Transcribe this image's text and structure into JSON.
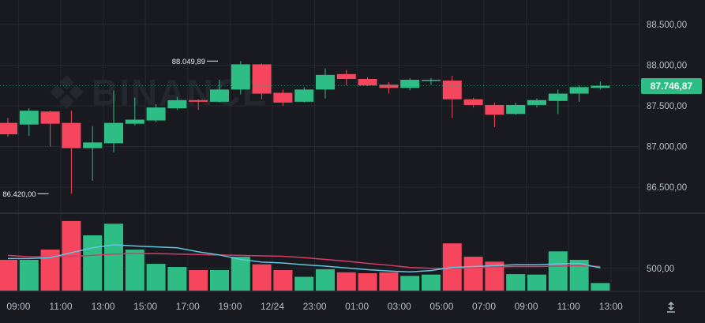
{
  "watermark": {
    "text": "BINANCE"
  },
  "colors": {
    "up": "#2ebd85",
    "down": "#f6465d",
    "background": "#181a20",
    "grid": "#252930",
    "axis_text": "#b7bdc6",
    "ma_fast": "#5fc6e0",
    "ma_slow": "#d23e66"
  },
  "last_price": {
    "label": "87.746,87",
    "value": 87746.87
  },
  "icons": {
    "scale": "axis-scale-icon"
  },
  "chart_data": [
    {
      "type": "candlestick",
      "price_axis": {
        "ticks": [
          {
            "value": 88500,
            "label": "88.500,00"
          },
          {
            "value": 88000,
            "label": "88.000,00"
          },
          {
            "value": 87500,
            "label": "87.500,00"
          },
          {
            "value": 87000,
            "label": "87.000,00"
          },
          {
            "value": 86500,
            "label": "86.500,00"
          }
        ],
        "ylim": [
          86200,
          88800
        ]
      },
      "time_axis": {
        "ticks": [
          {
            "index": 0.5,
            "label": "09:00"
          },
          {
            "index": 2.5,
            "label": "11:00"
          },
          {
            "index": 4.5,
            "label": "13:00"
          },
          {
            "index": 6.5,
            "label": "15:00"
          },
          {
            "index": 8.5,
            "label": "17:00"
          },
          {
            "index": 10.5,
            "label": "19:00"
          },
          {
            "index": 12.5,
            "label": "12/24"
          },
          {
            "index": 14.5,
            "label": "23:00"
          },
          {
            "index": 16.5,
            "label": "01:00"
          },
          {
            "index": 18.5,
            "label": "03:00"
          },
          {
            "index": 20.5,
            "label": "05:00"
          },
          {
            "index": 22.5,
            "label": "07:00"
          },
          {
            "index": 24.5,
            "label": "09:00"
          },
          {
            "index": 26.5,
            "label": "11:00"
          },
          {
            "index": 28.5,
            "label": "13:00"
          }
        ]
      },
      "annotations": [
        {
          "label": "88.049,89",
          "value": 88049.89,
          "index": 10,
          "side": "left"
        },
        {
          "label": "86.420,00",
          "value": 86420.0,
          "index": 2,
          "side": "left"
        }
      ],
      "candles": [
        {
          "o": 87290,
          "c": 87150,
          "h": 87350,
          "l": 87120
        },
        {
          "o": 87270,
          "c": 87440,
          "h": 87470,
          "l": 87130
        },
        {
          "o": 87430,
          "c": 87280,
          "h": 87440,
          "l": 87000
        },
        {
          "o": 87290,
          "c": 86980,
          "h": 87440,
          "l": 86420
        },
        {
          "o": 86980,
          "c": 87050,
          "h": 87250,
          "l": 86580
        },
        {
          "o": 87040,
          "c": 87290,
          "h": 87690,
          "l": 86930
        },
        {
          "o": 87280,
          "c": 87330,
          "h": 87600,
          "l": 87260
        },
        {
          "o": 87320,
          "c": 87480,
          "h": 87520,
          "l": 87300
        },
        {
          "o": 87470,
          "c": 87570,
          "h": 87610,
          "l": 87450
        },
        {
          "o": 87570,
          "c": 87550,
          "h": 87580,
          "l": 87450
        },
        {
          "o": 87550,
          "c": 87700,
          "h": 87820,
          "l": 87540
        },
        {
          "o": 87700,
          "c": 88010,
          "h": 88050,
          "l": 87640
        },
        {
          "o": 88010,
          "c": 87650,
          "h": 88020,
          "l": 87580
        },
        {
          "o": 87660,
          "c": 87540,
          "h": 87700,
          "l": 87500
        },
        {
          "o": 87550,
          "c": 87700,
          "h": 87730,
          "l": 87540
        },
        {
          "o": 87700,
          "c": 87880,
          "h": 87960,
          "l": 87590
        },
        {
          "o": 87890,
          "c": 87830,
          "h": 87940,
          "l": 87750
        },
        {
          "o": 87830,
          "c": 87750,
          "h": 87850,
          "l": 87740
        },
        {
          "o": 87760,
          "c": 87720,
          "h": 87790,
          "l": 87650
        },
        {
          "o": 87720,
          "c": 87820,
          "h": 87840,
          "l": 87690
        },
        {
          "o": 87810,
          "c": 87820,
          "h": 87840,
          "l": 87760
        },
        {
          "o": 87810,
          "c": 87580,
          "h": 87870,
          "l": 87350
        },
        {
          "o": 87580,
          "c": 87510,
          "h": 87600,
          "l": 87480
        },
        {
          "o": 87510,
          "c": 87390,
          "h": 87540,
          "l": 87240
        },
        {
          "o": 87400,
          "c": 87510,
          "h": 87540,
          "l": 87390
        },
        {
          "o": 87510,
          "c": 87570,
          "h": 87590,
          "l": 87480
        },
        {
          "o": 87560,
          "c": 87650,
          "h": 87700,
          "l": 87400
        },
        {
          "o": 87650,
          "c": 87730,
          "h": 87750,
          "l": 87550
        },
        {
          "o": 87720,
          "c": 87747,
          "h": 87800,
          "l": 87700
        }
      ]
    },
    {
      "type": "bar",
      "volume_axis": {
        "ticks": [
          {
            "value": 500,
            "label": "500,00"
          }
        ],
        "ylim": [
          0,
          1700
        ]
      },
      "volumes": [
        690,
        690,
        920,
        1560,
        1240,
        1500,
        920,
        600,
        530,
        460,
        460,
        760,
        590,
        460,
        310,
        480,
        410,
        390,
        410,
        330,
        360,
        1060,
        760,
        650,
        370,
        360,
        880,
        690,
        170
      ],
      "ma_fast": [
        720,
        720,
        740,
        850,
        960,
        1030,
        1000,
        980,
        960,
        870,
        800,
        700,
        640,
        620,
        580,
        550,
        510,
        470,
        440,
        420,
        450,
        520,
        540,
        560,
        580,
        580,
        600,
        610,
        510
      ],
      "ma_slow": [
        790,
        760,
        760,
        770,
        790,
        820,
        830,
        830,
        820,
        810,
        800,
        790,
        780,
        770,
        740,
        700,
        660,
        610,
        570,
        520,
        500,
        500,
        510,
        530,
        540,
        540,
        550,
        560,
        540
      ]
    }
  ]
}
